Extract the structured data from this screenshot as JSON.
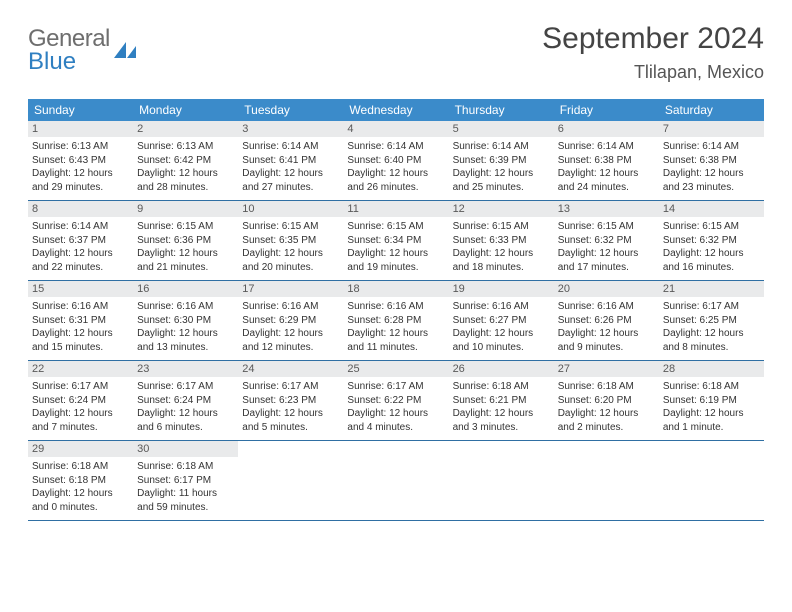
{
  "logo": {
    "top": "General",
    "bottom": "Blue"
  },
  "title": "September 2024",
  "location": "Tlilapan, Mexico",
  "colors": {
    "header_bg": "#3b8bca",
    "header_text": "#ffffff",
    "daynum_bg": "#e9eaeb",
    "week_border": "#2f6fa3",
    "title_color": "#444444",
    "logo_gray": "#6e6e6e",
    "logo_blue": "#2f7fc1"
  },
  "weekdays": [
    "Sunday",
    "Monday",
    "Tuesday",
    "Wednesday",
    "Thursday",
    "Friday",
    "Saturday"
  ],
  "weeks": [
    [
      {
        "n": "1",
        "sr": "Sunrise: 6:13 AM",
        "ss": "Sunset: 6:43 PM",
        "d1": "Daylight: 12 hours",
        "d2": "and 29 minutes."
      },
      {
        "n": "2",
        "sr": "Sunrise: 6:13 AM",
        "ss": "Sunset: 6:42 PM",
        "d1": "Daylight: 12 hours",
        "d2": "and 28 minutes."
      },
      {
        "n": "3",
        "sr": "Sunrise: 6:14 AM",
        "ss": "Sunset: 6:41 PM",
        "d1": "Daylight: 12 hours",
        "d2": "and 27 minutes."
      },
      {
        "n": "4",
        "sr": "Sunrise: 6:14 AM",
        "ss": "Sunset: 6:40 PM",
        "d1": "Daylight: 12 hours",
        "d2": "and 26 minutes."
      },
      {
        "n": "5",
        "sr": "Sunrise: 6:14 AM",
        "ss": "Sunset: 6:39 PM",
        "d1": "Daylight: 12 hours",
        "d2": "and 25 minutes."
      },
      {
        "n": "6",
        "sr": "Sunrise: 6:14 AM",
        "ss": "Sunset: 6:38 PM",
        "d1": "Daylight: 12 hours",
        "d2": "and 24 minutes."
      },
      {
        "n": "7",
        "sr": "Sunrise: 6:14 AM",
        "ss": "Sunset: 6:38 PM",
        "d1": "Daylight: 12 hours",
        "d2": "and 23 minutes."
      }
    ],
    [
      {
        "n": "8",
        "sr": "Sunrise: 6:14 AM",
        "ss": "Sunset: 6:37 PM",
        "d1": "Daylight: 12 hours",
        "d2": "and 22 minutes."
      },
      {
        "n": "9",
        "sr": "Sunrise: 6:15 AM",
        "ss": "Sunset: 6:36 PM",
        "d1": "Daylight: 12 hours",
        "d2": "and 21 minutes."
      },
      {
        "n": "10",
        "sr": "Sunrise: 6:15 AM",
        "ss": "Sunset: 6:35 PM",
        "d1": "Daylight: 12 hours",
        "d2": "and 20 minutes."
      },
      {
        "n": "11",
        "sr": "Sunrise: 6:15 AM",
        "ss": "Sunset: 6:34 PM",
        "d1": "Daylight: 12 hours",
        "d2": "and 19 minutes."
      },
      {
        "n": "12",
        "sr": "Sunrise: 6:15 AM",
        "ss": "Sunset: 6:33 PM",
        "d1": "Daylight: 12 hours",
        "d2": "and 18 minutes."
      },
      {
        "n": "13",
        "sr": "Sunrise: 6:15 AM",
        "ss": "Sunset: 6:32 PM",
        "d1": "Daylight: 12 hours",
        "d2": "and 17 minutes."
      },
      {
        "n": "14",
        "sr": "Sunrise: 6:15 AM",
        "ss": "Sunset: 6:32 PM",
        "d1": "Daylight: 12 hours",
        "d2": "and 16 minutes."
      }
    ],
    [
      {
        "n": "15",
        "sr": "Sunrise: 6:16 AM",
        "ss": "Sunset: 6:31 PM",
        "d1": "Daylight: 12 hours",
        "d2": "and 15 minutes."
      },
      {
        "n": "16",
        "sr": "Sunrise: 6:16 AM",
        "ss": "Sunset: 6:30 PM",
        "d1": "Daylight: 12 hours",
        "d2": "and 13 minutes."
      },
      {
        "n": "17",
        "sr": "Sunrise: 6:16 AM",
        "ss": "Sunset: 6:29 PM",
        "d1": "Daylight: 12 hours",
        "d2": "and 12 minutes."
      },
      {
        "n": "18",
        "sr": "Sunrise: 6:16 AM",
        "ss": "Sunset: 6:28 PM",
        "d1": "Daylight: 12 hours",
        "d2": "and 11 minutes."
      },
      {
        "n": "19",
        "sr": "Sunrise: 6:16 AM",
        "ss": "Sunset: 6:27 PM",
        "d1": "Daylight: 12 hours",
        "d2": "and 10 minutes."
      },
      {
        "n": "20",
        "sr": "Sunrise: 6:16 AM",
        "ss": "Sunset: 6:26 PM",
        "d1": "Daylight: 12 hours",
        "d2": "and 9 minutes."
      },
      {
        "n": "21",
        "sr": "Sunrise: 6:17 AM",
        "ss": "Sunset: 6:25 PM",
        "d1": "Daylight: 12 hours",
        "d2": "and 8 minutes."
      }
    ],
    [
      {
        "n": "22",
        "sr": "Sunrise: 6:17 AM",
        "ss": "Sunset: 6:24 PM",
        "d1": "Daylight: 12 hours",
        "d2": "and 7 minutes."
      },
      {
        "n": "23",
        "sr": "Sunrise: 6:17 AM",
        "ss": "Sunset: 6:24 PM",
        "d1": "Daylight: 12 hours",
        "d2": "and 6 minutes."
      },
      {
        "n": "24",
        "sr": "Sunrise: 6:17 AM",
        "ss": "Sunset: 6:23 PM",
        "d1": "Daylight: 12 hours",
        "d2": "and 5 minutes."
      },
      {
        "n": "25",
        "sr": "Sunrise: 6:17 AM",
        "ss": "Sunset: 6:22 PM",
        "d1": "Daylight: 12 hours",
        "d2": "and 4 minutes."
      },
      {
        "n": "26",
        "sr": "Sunrise: 6:18 AM",
        "ss": "Sunset: 6:21 PM",
        "d1": "Daylight: 12 hours",
        "d2": "and 3 minutes."
      },
      {
        "n": "27",
        "sr": "Sunrise: 6:18 AM",
        "ss": "Sunset: 6:20 PM",
        "d1": "Daylight: 12 hours",
        "d2": "and 2 minutes."
      },
      {
        "n": "28",
        "sr": "Sunrise: 6:18 AM",
        "ss": "Sunset: 6:19 PM",
        "d1": "Daylight: 12 hours",
        "d2": "and 1 minute."
      }
    ],
    [
      {
        "n": "29",
        "sr": "Sunrise: 6:18 AM",
        "ss": "Sunset: 6:18 PM",
        "d1": "Daylight: 12 hours",
        "d2": "and 0 minutes."
      },
      {
        "n": "30",
        "sr": "Sunrise: 6:18 AM",
        "ss": "Sunset: 6:17 PM",
        "d1": "Daylight: 11 hours",
        "d2": "and 59 minutes."
      },
      null,
      null,
      null,
      null,
      null
    ]
  ]
}
